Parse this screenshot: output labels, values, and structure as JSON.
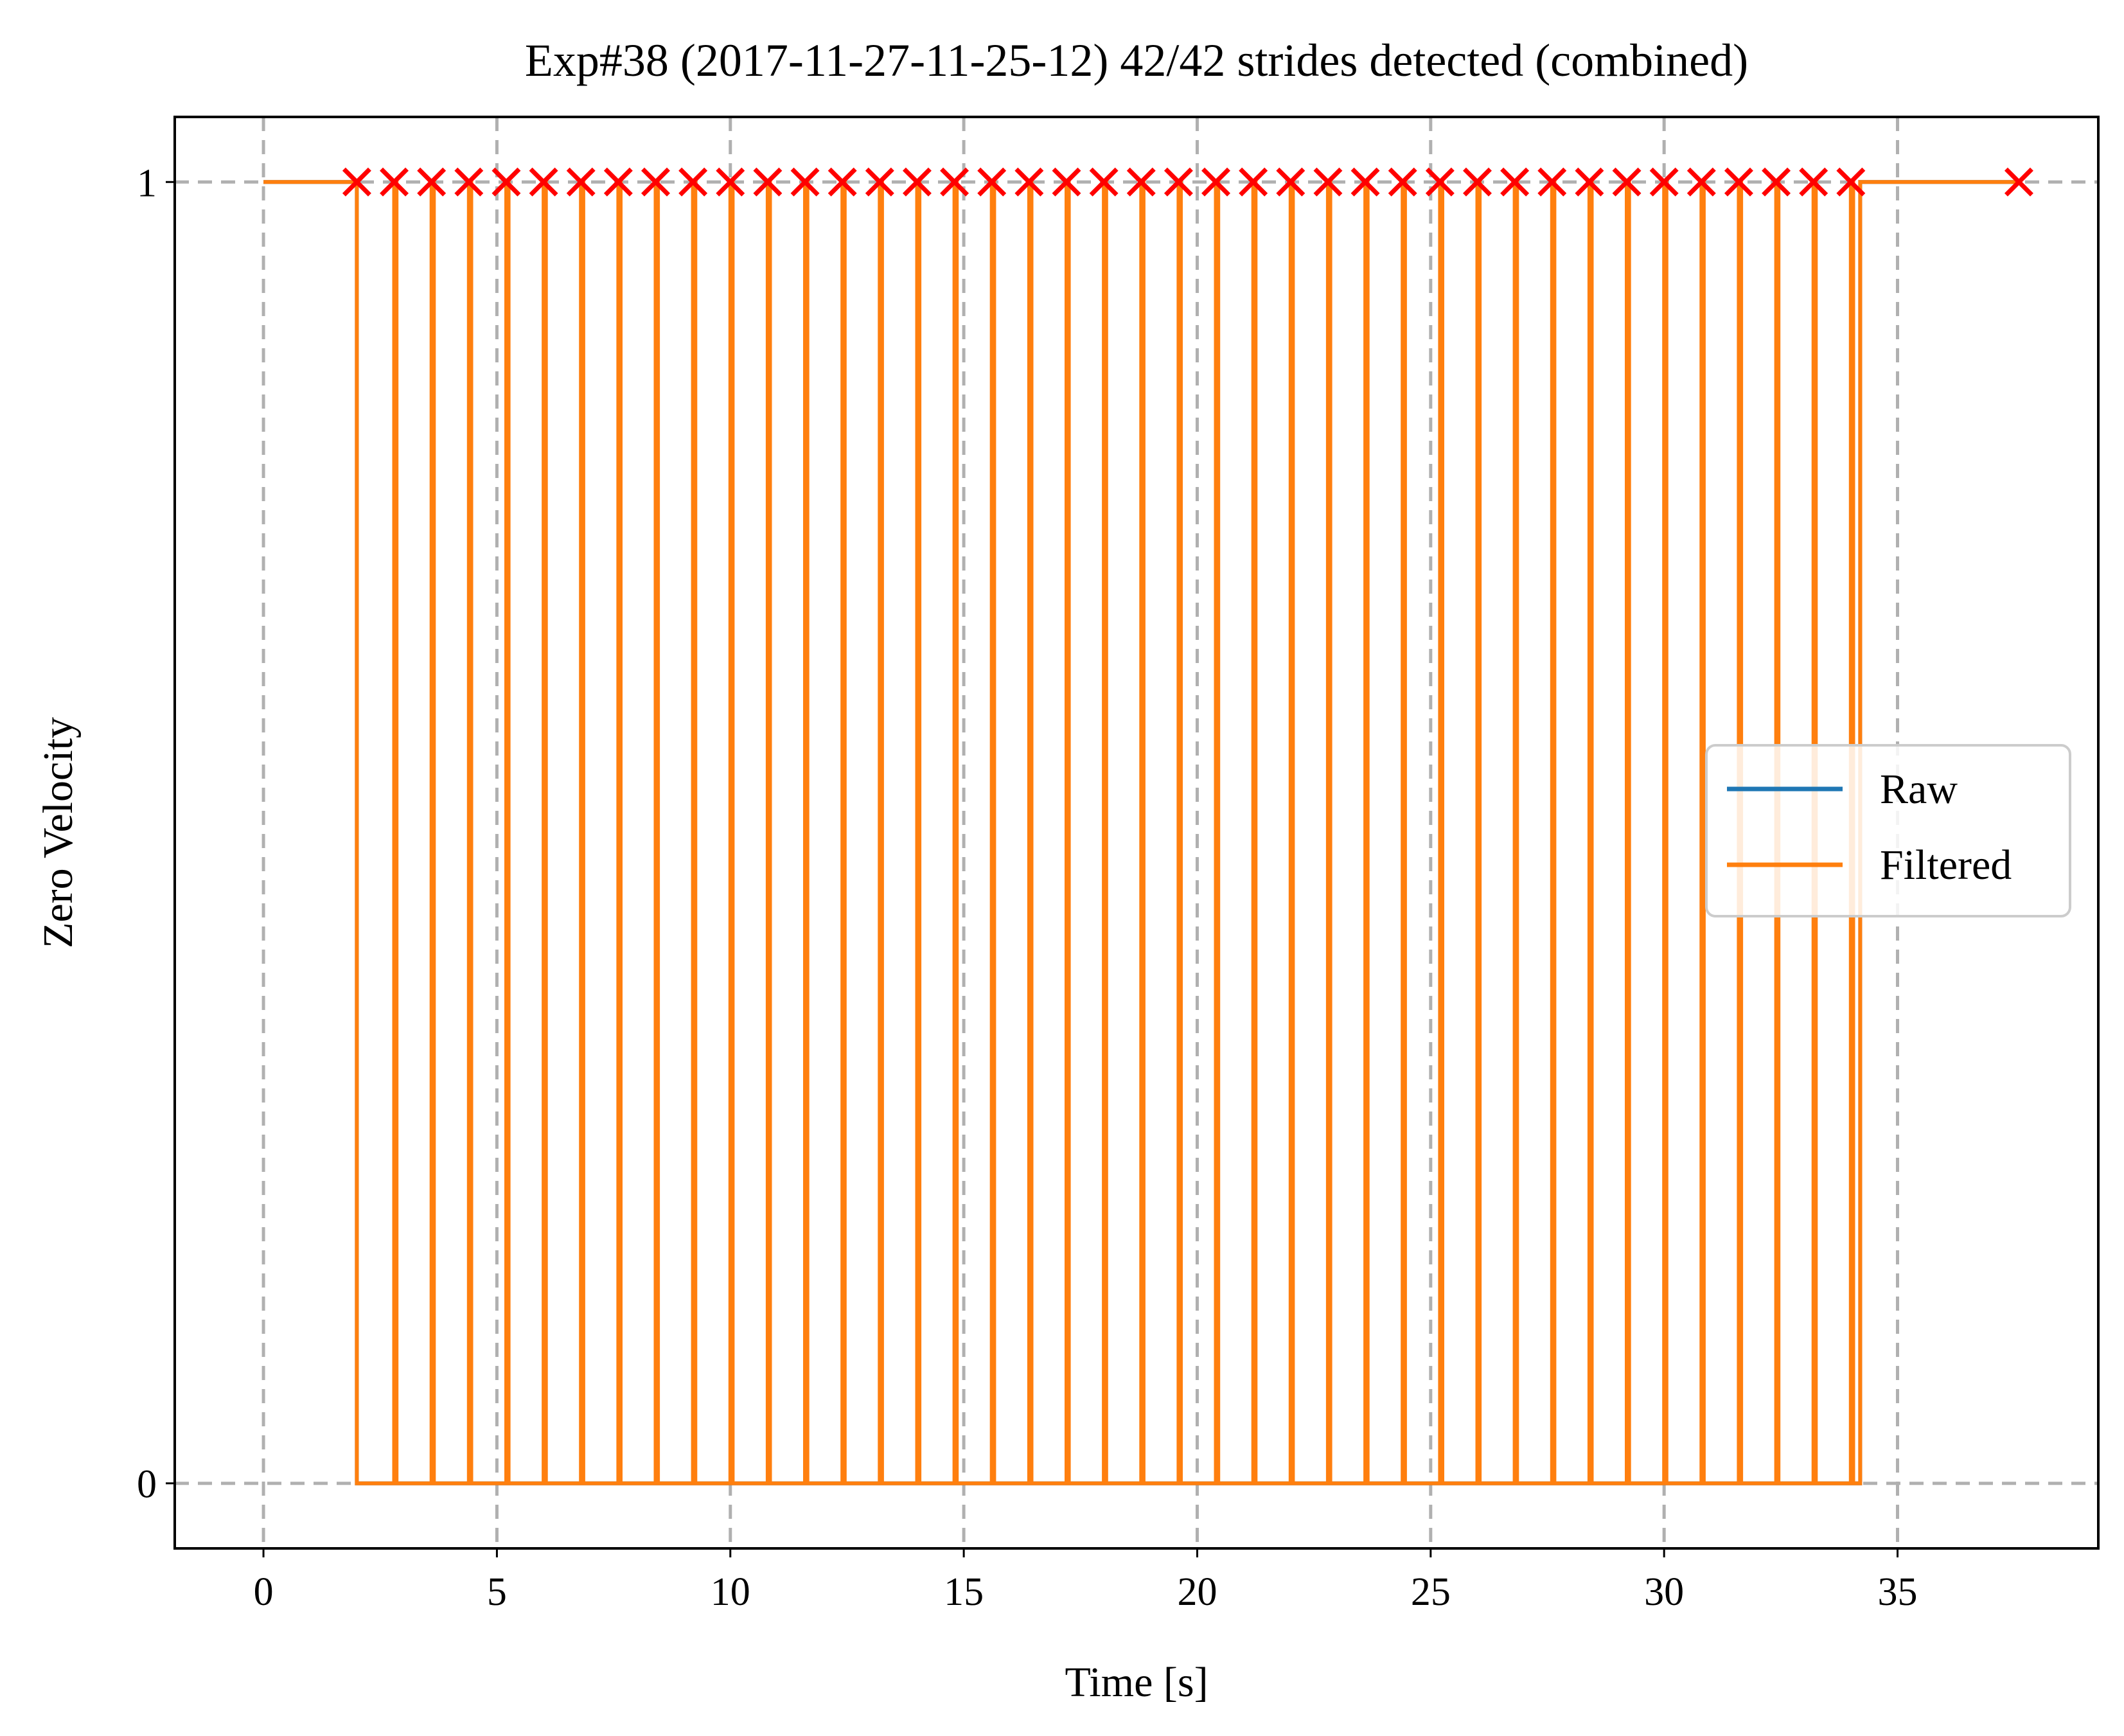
{
  "chart_data": {
    "type": "line",
    "title": "Exp#38 (2017-11-27-11-25-12) 42/42 strides detected (combined)",
    "xlabel": "Time [s]",
    "ylabel": "Zero Velocity",
    "xlim": [
      -1.9,
      39.3
    ],
    "ylim": [
      -0.05,
      1.05
    ],
    "x_ticks": [
      0,
      5,
      10,
      15,
      20,
      25,
      30,
      35
    ],
    "y_ticks": [
      0,
      1
    ],
    "grid": true,
    "grid_style": "dashed",
    "legend": {
      "position": "center-right",
      "entries": [
        "Raw",
        "Filtered"
      ]
    },
    "colors": {
      "raw": "#1f77b4",
      "filtered": "#ff7f0e",
      "markers": "#ff0000",
      "grid": "#b0b0b0"
    },
    "series": [
      {
        "name": "Raw",
        "color": "#1f77b4",
        "step": true,
        "points": [
          [
            0,
            1
          ],
          [
            2.0,
            1
          ],
          [
            2.0,
            0
          ],
          [
            34.2,
            0
          ],
          [
            34.2,
            1
          ],
          [
            37.6,
            1
          ]
        ]
      },
      {
        "name": "Filtered",
        "color": "#ff7f0e",
        "step": true,
        "points": [
          [
            0,
            1
          ],
          [
            2.0,
            1
          ],
          [
            2.0,
            0
          ],
          [
            34.2,
            0
          ],
          [
            34.2,
            1
          ],
          [
            37.6,
            1
          ]
        ]
      }
    ],
    "filtered_pulses": [
      [
        2.8,
        2.85
      ],
      [
        3.6,
        3.65
      ],
      [
        4.4,
        4.45
      ],
      [
        5.2,
        5.25
      ],
      [
        6.0,
        6.05
      ],
      [
        6.8,
        6.85
      ],
      [
        7.6,
        7.65
      ],
      [
        8.4,
        8.45
      ],
      [
        9.2,
        9.25
      ],
      [
        10.0,
        10.05
      ],
      [
        10.8,
        10.85
      ],
      [
        11.6,
        11.65
      ],
      [
        12.4,
        12.45
      ],
      [
        13.2,
        13.25
      ],
      [
        14.0,
        14.05
      ],
      [
        14.8,
        14.85
      ],
      [
        15.6,
        15.65
      ],
      [
        16.4,
        16.45
      ],
      [
        17.2,
        17.25
      ],
      [
        18.0,
        18.05
      ],
      [
        18.8,
        18.85
      ],
      [
        19.6,
        19.65
      ],
      [
        20.4,
        20.45
      ],
      [
        21.2,
        21.25
      ],
      [
        22.0,
        22.05
      ],
      [
        22.8,
        22.85
      ],
      [
        23.6,
        23.65
      ],
      [
        24.4,
        24.45
      ],
      [
        25.2,
        25.25
      ],
      [
        26.0,
        26.05
      ],
      [
        26.8,
        26.85
      ],
      [
        27.6,
        27.65
      ],
      [
        28.4,
        28.45
      ],
      [
        29.2,
        29.25
      ],
      [
        30.0,
        30.05
      ],
      [
        30.8,
        30.85
      ],
      [
        31.6,
        31.65
      ],
      [
        32.4,
        32.45
      ],
      [
        33.2,
        33.25
      ],
      [
        34.0,
        34.05
      ]
    ],
    "stride_markers": {
      "marker": "x",
      "y": 1,
      "x": [
        2.0,
        2.8,
        3.6,
        4.4,
        5.2,
        6.0,
        6.8,
        7.6,
        8.4,
        9.2,
        10.0,
        10.8,
        11.6,
        12.4,
        13.2,
        14.0,
        14.8,
        15.6,
        16.4,
        17.2,
        18.0,
        18.8,
        19.6,
        20.4,
        21.2,
        22.0,
        22.8,
        23.6,
        24.4,
        25.2,
        26.0,
        26.8,
        27.6,
        28.4,
        29.2,
        30.0,
        30.8,
        31.6,
        32.4,
        33.2,
        34.0,
        37.6
      ]
    }
  }
}
